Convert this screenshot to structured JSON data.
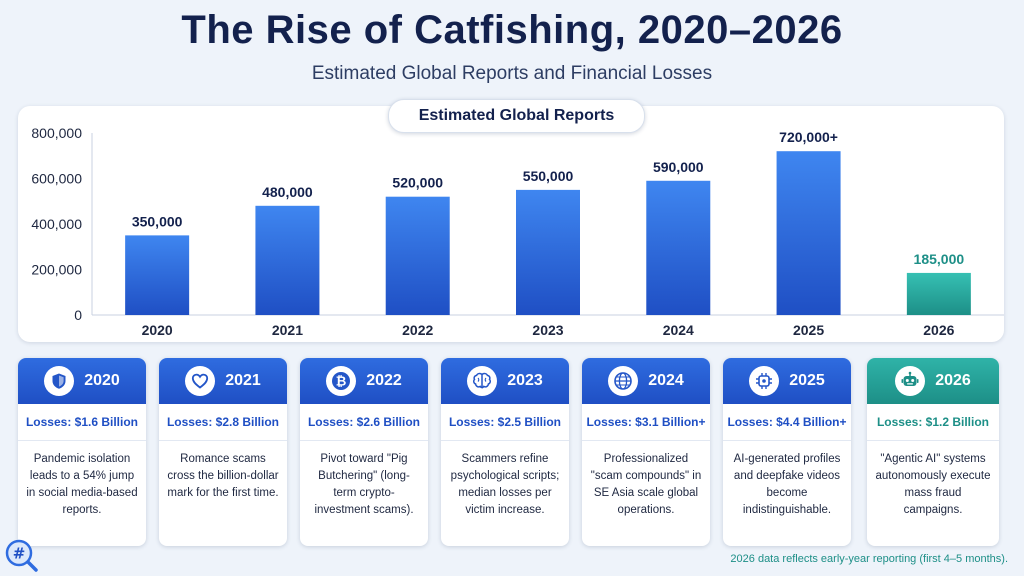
{
  "title": "The Rise of Catfishing, 2020–2026",
  "subtitle": "Estimated Global Reports and Financial Losses",
  "colors": {
    "bar_blue": "#2f6ce0",
    "bar_teal": "#2fb3a8",
    "label_dark": "#13214d",
    "label_teal": "#1d8f87"
  },
  "chart_data": {
    "type": "bar",
    "title": "Estimated Global Reports",
    "categories": [
      "2020",
      "2021",
      "2022",
      "2023",
      "2024",
      "2025",
      "2026"
    ],
    "values": [
      350000,
      480000,
      520000,
      550000,
      590000,
      720000,
      185000
    ],
    "data_labels": [
      "350,000",
      "480,000",
      "520,000",
      "550,000",
      "590,000",
      "720,000+",
      "185,000"
    ],
    "highlight_last": true,
    "ylim": [
      0,
      800000
    ],
    "yticks": [
      0,
      200000,
      400000,
      600000,
      800000
    ],
    "ytick_labels": [
      "0",
      "200,000",
      "400,000",
      "600,000",
      "800,000"
    ],
    "xlabel": "",
    "ylabel": "",
    "grid": false
  },
  "cards": [
    {
      "year": "2020",
      "icon": "shield-icon",
      "loss": "Losses: $1.6 Billion",
      "desc": "Pandemic isolation leads to a 54% jump in social media-based reports."
    },
    {
      "year": "2021",
      "icon": "heart-icon",
      "loss": "Losses: $2.8 Billion",
      "desc": "Romance scams cross the billion-dollar mark for the first time."
    },
    {
      "year": "2022",
      "icon": "bitcoin-icon",
      "loss": "Losses: $2.6 Billion",
      "desc": "Pivot toward \"Pig Butchering\" (long-term crypto-investment scams)."
    },
    {
      "year": "2023",
      "icon": "brain-icon",
      "loss": "Losses: $2.5 Billion",
      "desc": "Scammers refine psychological scripts; median losses per victim increase."
    },
    {
      "year": "2024",
      "icon": "globe-icon",
      "loss": "Losses: $3.1 Billion+",
      "desc": "Professionalized \"scam compounds\" in SE Asia scale global operations."
    },
    {
      "year": "2025",
      "icon": "ai-chip-icon",
      "loss": "Losses: $4.4 Billion+",
      "desc": "AI-generated profiles and deepfake videos become indistinguishable."
    },
    {
      "year": "2026",
      "icon": "robot-icon",
      "loss": "Losses: $1.2 Billion",
      "desc": "\"Agentic AI\" systems autonomously execute mass fraud campaigns."
    }
  ],
  "footnote": "2026 data reflects early-year reporting (first 4–5 months)."
}
